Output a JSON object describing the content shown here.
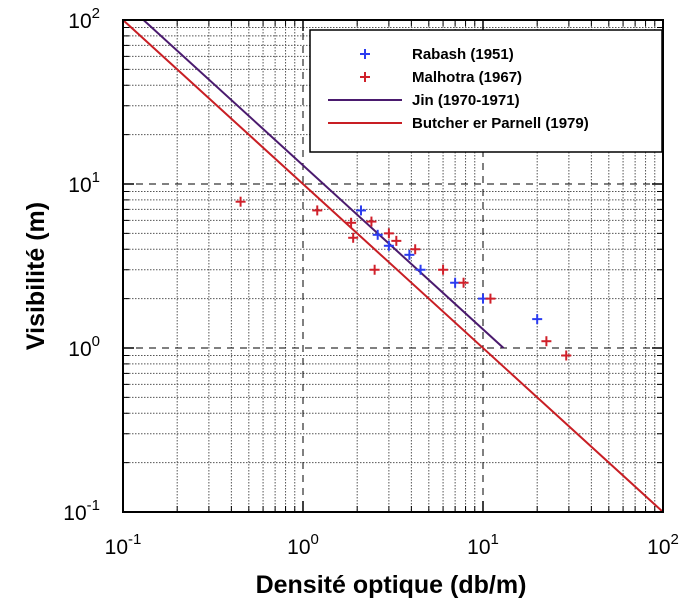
{
  "chart_data": {
    "type": "scatter",
    "xlabel": "Densité optique (db/m)",
    "ylabel": "Visibilité (m)",
    "xscale": "log",
    "yscale": "log",
    "xlim": [
      0.1,
      100
    ],
    "ylim": [
      0.1,
      100
    ],
    "x_ticks": [
      {
        "base": "10",
        "exp": "-1"
      },
      {
        "base": "10",
        "exp": "0"
      },
      {
        "base": "10",
        "exp": "1"
      },
      {
        "base": "10",
        "exp": "2"
      }
    ],
    "y_ticks": [
      {
        "base": "10",
        "exp": "-1"
      },
      {
        "base": "10",
        "exp": "0"
      },
      {
        "base": "10",
        "exp": "1"
      },
      {
        "base": "10",
        "exp": "2"
      }
    ],
    "grid": true,
    "legend_position": "top-right",
    "series": [
      {
        "name": "Rabash (1951)",
        "kind": "points",
        "marker": "+",
        "color": "#2b3cf0",
        "points": [
          [
            2.1,
            6.9
          ],
          [
            2.6,
            4.9
          ],
          [
            3.0,
            4.2
          ],
          [
            3.9,
            3.7
          ],
          [
            4.5,
            3.0
          ],
          [
            7.0,
            2.5
          ],
          [
            10.0,
            2.0
          ],
          [
            20.0,
            1.5
          ]
        ]
      },
      {
        "name": "Malhotra (1967)",
        "kind": "points",
        "marker": "+",
        "color": "#d0202a",
        "points": [
          [
            0.45,
            7.8
          ],
          [
            1.2,
            6.9
          ],
          [
            1.85,
            5.8
          ],
          [
            1.9,
            4.7
          ],
          [
            2.4,
            5.9
          ],
          [
            2.5,
            3.0
          ],
          [
            3.0,
            5.0
          ],
          [
            3.3,
            4.5
          ],
          [
            4.2,
            4.0
          ],
          [
            6.0,
            3.0
          ],
          [
            7.8,
            2.5
          ],
          [
            11.0,
            2.0
          ],
          [
            22.5,
            1.1
          ],
          [
            29.0,
            0.9
          ]
        ]
      },
      {
        "name": "Jin (1970-1971)",
        "kind": "line",
        "color": "#4a1a6e",
        "points": [
          [
            0.13,
            100
          ],
          [
            13.0,
            1.0
          ]
        ]
      },
      {
        "name": "Butcher er Parnell (1979)",
        "kind": "line",
        "color": "#c81e24",
        "points": [
          [
            0.1,
            100
          ],
          [
            100,
            0.1
          ]
        ]
      }
    ]
  }
}
